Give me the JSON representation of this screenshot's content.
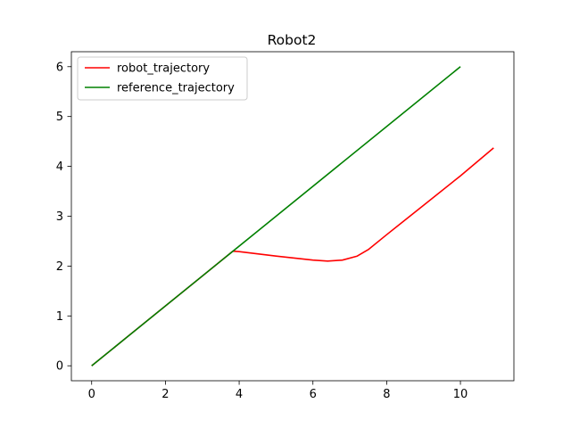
{
  "chart_data": {
    "type": "line",
    "title": "Robot2",
    "xlabel": "",
    "ylabel": "",
    "xlim": [
      -0.55,
      11.45
    ],
    "ylim": [
      -0.3,
      6.3
    ],
    "xticks": [
      0,
      2,
      4,
      6,
      8,
      10
    ],
    "yticks": [
      0,
      1,
      2,
      3,
      4,
      5,
      6
    ],
    "grid": false,
    "legend_position": "top-left",
    "series": [
      {
        "name": "robot_trajectory",
        "color": "#ff0000",
        "points": [
          [
            0.0,
            0.0
          ],
          [
            1.0,
            0.6
          ],
          [
            2.0,
            1.2
          ],
          [
            3.0,
            1.8
          ],
          [
            3.83,
            2.3
          ],
          [
            4.0,
            2.29
          ],
          [
            5.0,
            2.2
          ],
          [
            6.0,
            2.12
          ],
          [
            6.4,
            2.1
          ],
          [
            6.8,
            2.12
          ],
          [
            7.2,
            2.2
          ],
          [
            7.5,
            2.33
          ],
          [
            8.0,
            2.63
          ],
          [
            9.0,
            3.22
          ],
          [
            10.0,
            3.81
          ],
          [
            10.9,
            4.37
          ]
        ]
      },
      {
        "name": "reference_trajectory",
        "color": "#008000",
        "points": [
          [
            0.0,
            0.0
          ],
          [
            10.0,
            6.0
          ]
        ]
      }
    ]
  }
}
